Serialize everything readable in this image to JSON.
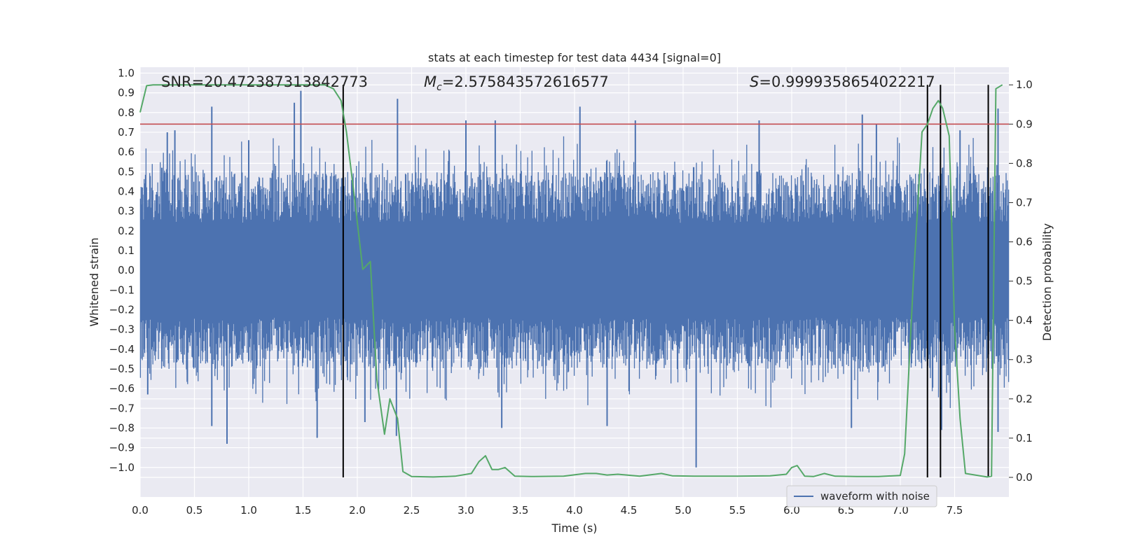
{
  "chart_data": {
    "type": "line",
    "title": "stats at each timestep for test data 4434 [signal=0]",
    "xlabel": "Time (s)",
    "ylabel_left": "Whitened strain",
    "ylabel_right": "Detection probability",
    "xlim": [
      0.0,
      8.0
    ],
    "ylim_left": [
      -1.15,
      1.03
    ],
    "ylim_right": [
      -0.05,
      1.045
    ],
    "x_ticks": [
      "0.0",
      "0.5",
      "1.0",
      "1.5",
      "2.0",
      "2.5",
      "3.0",
      "3.5",
      "4.0",
      "4.5",
      "5.0",
      "5.5",
      "6.0",
      "6.5",
      "7.0",
      "7.5"
    ],
    "y_ticks_left": [
      "1.0",
      "0.9",
      "0.8",
      "0.7",
      "0.6",
      "0.5",
      "0.4",
      "0.3",
      "0.2",
      "0.1",
      "0.0",
      "−0.1",
      "−0.2",
      "−0.3",
      "−0.4",
      "−0.5",
      "−0.6",
      "−0.7",
      "−0.8",
      "−0.9",
      "−1.0"
    ],
    "y_ticks_right": [
      "1.0",
      "0.9",
      "0.8",
      "0.7",
      "0.6",
      "0.5",
      "0.4",
      "0.3",
      "0.2",
      "0.1",
      "0.0"
    ],
    "annotations": {
      "snr": "SNR=20.472387313842773",
      "mc_symbol": "M",
      "mc_sub": "c",
      "mc_value": "=2.575843572616577",
      "s_symbol": "S",
      "s_value": "=0.9999358654022217"
    },
    "threshold": {
      "value": 0.9,
      "axis": "right",
      "color": "#c44e52"
    },
    "vertical_lines_x": [
      1.87,
      7.25,
      7.37,
      7.81
    ],
    "legend": {
      "label": "waveform with noise",
      "placement": "lower-right"
    },
    "series": [
      {
        "name": "waveform with noise",
        "axis": "left",
        "color": "#4c72b0",
        "envelope_peaks": [
          {
            "x": 0.02,
            "y": 0.42
          },
          {
            "x": 0.2,
            "y": 0.52
          },
          {
            "x": 0.25,
            "y": 0.7
          },
          {
            "x": 0.32,
            "y": 0.71
          },
          {
            "x": 0.66,
            "y": 0.83
          },
          {
            "x": 1.0,
            "y": 0.66
          },
          {
            "x": 1.42,
            "y": 0.85
          },
          {
            "x": 1.48,
            "y": 0.91
          },
          {
            "x": 2.37,
            "y": 0.87
          },
          {
            "x": 3.0,
            "y": 0.76
          },
          {
            "x": 3.27,
            "y": 0.76
          },
          {
            "x": 4.05,
            "y": 0.83
          },
          {
            "x": 4.56,
            "y": 0.76
          },
          {
            "x": 5.7,
            "y": 0.76
          },
          {
            "x": 6.65,
            "y": 0.79
          },
          {
            "x": 6.78,
            "y": 0.74
          },
          {
            "x": 7.55,
            "y": 0.71
          },
          {
            "x": 7.9,
            "y": 0.82
          }
        ],
        "envelope_troughs": [
          {
            "x": 0.07,
            "y": -0.63
          },
          {
            "x": 0.66,
            "y": -0.79
          },
          {
            "x": 0.8,
            "y": -0.88
          },
          {
            "x": 1.63,
            "y": -0.85
          },
          {
            "x": 2.07,
            "y": -0.77
          },
          {
            "x": 2.36,
            "y": -0.84
          },
          {
            "x": 3.33,
            "y": -0.8
          },
          {
            "x": 4.3,
            "y": -0.79
          },
          {
            "x": 5.12,
            "y": -1.0
          },
          {
            "x": 6.55,
            "y": -0.8
          },
          {
            "x": 7.38,
            "y": -0.81
          },
          {
            "x": 7.9,
            "y": -0.82
          }
        ]
      },
      {
        "name": "Detection probability",
        "axis": "right",
        "color": "#55a868",
        "x": [
          0.0,
          0.06,
          0.12,
          0.3,
          0.6,
          0.9,
          1.2,
          1.5,
          1.7,
          1.78,
          1.85,
          1.9,
          1.97,
          2.05,
          2.12,
          2.18,
          2.25,
          2.3,
          2.37,
          2.42,
          2.5,
          2.7,
          2.9,
          3.05,
          3.12,
          3.18,
          3.24,
          3.3,
          3.36,
          3.45,
          3.6,
          3.9,
          4.1,
          4.2,
          4.3,
          4.4,
          4.6,
          4.8,
          4.9,
          5.1,
          5.5,
          5.8,
          5.95,
          6.0,
          6.05,
          6.12,
          6.2,
          6.3,
          6.4,
          6.6,
          6.8,
          7.0,
          7.04,
          7.12,
          7.2,
          7.25,
          7.3,
          7.35,
          7.39,
          7.45,
          7.5,
          7.55,
          7.6,
          7.8,
          7.84,
          7.88,
          7.94
        ],
        "y": [
          0.93,
          0.998,
          1.0,
          1.0,
          1.0,
          1.0,
          1.0,
          1.0,
          1.0,
          0.99,
          0.96,
          0.88,
          0.72,
          0.53,
          0.55,
          0.25,
          0.11,
          0.2,
          0.15,
          0.015,
          0.002,
          0.001,
          0.003,
          0.01,
          0.04,
          0.055,
          0.02,
          0.02,
          0.025,
          0.003,
          0.002,
          0.003,
          0.01,
          0.01,
          0.006,
          0.008,
          0.003,
          0.01,
          0.004,
          0.003,
          0.003,
          0.004,
          0.008,
          0.025,
          0.03,
          0.003,
          0.002,
          0.01,
          0.003,
          0.002,
          0.002,
          0.005,
          0.06,
          0.5,
          0.88,
          0.9,
          0.94,
          0.96,
          0.94,
          0.87,
          0.38,
          0.15,
          0.01,
          0.001,
          0.003,
          0.99,
          1.0
        ]
      }
    ]
  }
}
